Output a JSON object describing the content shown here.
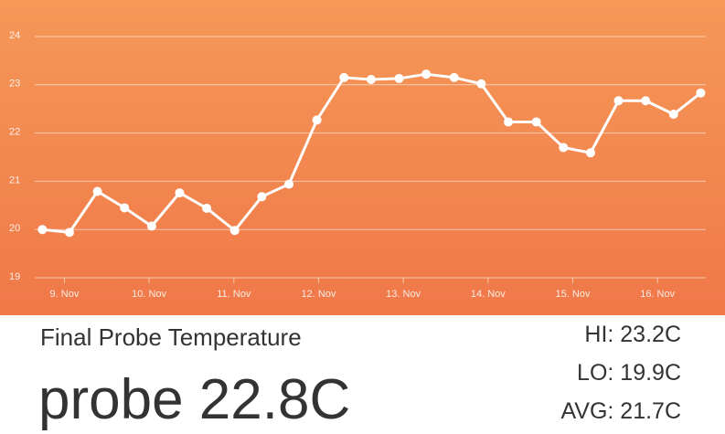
{
  "chart_data": {
    "type": "line",
    "x": [
      8.74,
      9.06,
      9.39,
      9.71,
      10.03,
      10.36,
      10.68,
      11.01,
      11.33,
      11.65,
      11.98,
      12.3,
      12.62,
      12.95,
      13.27,
      13.6,
      13.92,
      14.24,
      14.57,
      14.89,
      15.21,
      15.54,
      15.86,
      16.19,
      16.51
    ],
    "series": [
      {
        "color": "#ffffff",
        "values": [
          20.0,
          19.94,
          20.79,
          20.45,
          20.07,
          20.76,
          20.44,
          19.98,
          20.68,
          20.94,
          22.27,
          23.15,
          23.11,
          23.13,
          23.22,
          23.15,
          23.02,
          22.23,
          22.23,
          21.7,
          21.59,
          22.67,
          22.67,
          22.39,
          22.83
        ]
      }
    ],
    "xlim": [
      8.65,
      16.57
    ],
    "xticks": [
      {
        "value": 9,
        "label": "9. Nov"
      },
      {
        "value": 10,
        "label": "10. Nov"
      },
      {
        "value": 11,
        "label": "11. Nov"
      },
      {
        "value": 12,
        "label": "12. Nov"
      },
      {
        "value": 13,
        "label": "13. Nov"
      },
      {
        "value": 14,
        "label": "14. Nov"
      },
      {
        "value": 15,
        "label": "15. Nov"
      },
      {
        "value": 16,
        "label": "16. Nov"
      }
    ],
    "ylim": [
      19,
      24
    ],
    "yticks": [
      19,
      20,
      21,
      22,
      23,
      24
    ],
    "grid": true
  },
  "panel": {
    "title": "Final Probe Temperature",
    "reading": "probe 22.8C",
    "stats": [
      "HI: 23.2C",
      "LO: 19.9C",
      "AVG: 21.7C"
    ]
  }
}
